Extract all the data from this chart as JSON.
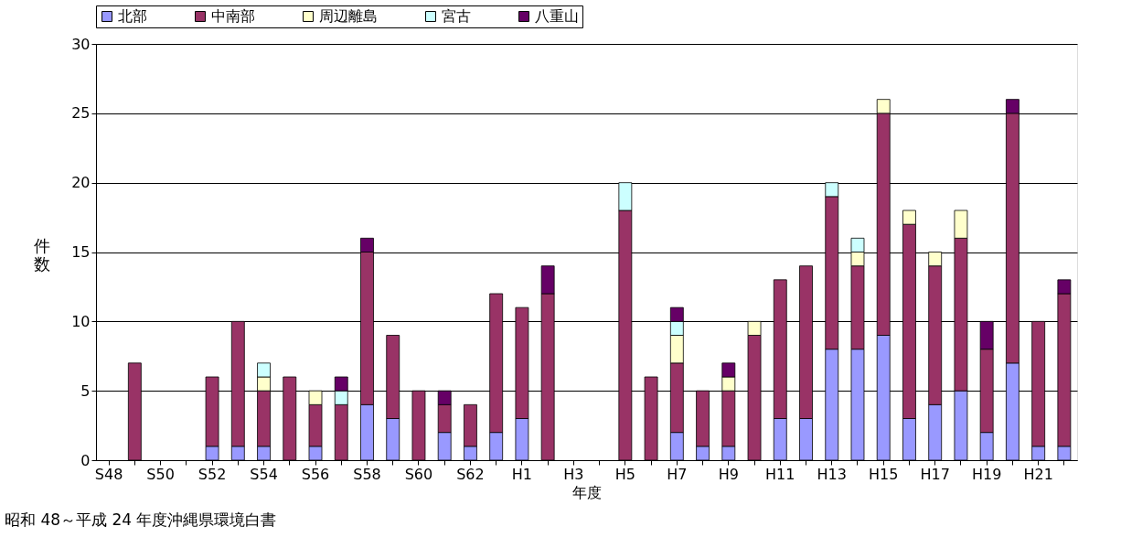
{
  "chart_data": {
    "type": "bar",
    "stacked": true,
    "categories": [
      "S48",
      null,
      "S50",
      null,
      "S52",
      null,
      "S54",
      null,
      "S56",
      null,
      "S58",
      null,
      "S60",
      null,
      "S62",
      null,
      "H1",
      null,
      "H3",
      null,
      "H5",
      null,
      "H7",
      null,
      "H9",
      null,
      "H11",
      null,
      "H13",
      null,
      "H15",
      null,
      "H17",
      null,
      "H19",
      null,
      "H21",
      null
    ],
    "series": [
      {
        "name": "北部",
        "color": "#9999ff",
        "values": [
          null,
          null,
          null,
          null,
          1,
          1,
          1,
          null,
          1,
          null,
          4,
          3,
          null,
          2,
          1,
          2,
          3,
          null,
          null,
          null,
          null,
          null,
          2,
          1,
          1,
          null,
          3,
          3,
          8,
          8,
          9,
          3,
          4,
          5,
          2,
          7,
          1,
          1
        ]
      },
      {
        "name": "中南部",
        "color": "#993366",
        "values": [
          null,
          7,
          null,
          null,
          5,
          9,
          4,
          6,
          3,
          4,
          11,
          6,
          5,
          2,
          3,
          10,
          8,
          12,
          null,
          null,
          18,
          6,
          5,
          4,
          4,
          9,
          10,
          11,
          11,
          6,
          16,
          14,
          10,
          11,
          6,
          18,
          9,
          11
        ]
      },
      {
        "name": "周辺離島",
        "color": "#ffffcc",
        "values": [
          null,
          null,
          null,
          null,
          null,
          null,
          1,
          null,
          1,
          null,
          null,
          null,
          null,
          null,
          null,
          null,
          null,
          null,
          null,
          null,
          null,
          null,
          2,
          null,
          1,
          1,
          null,
          null,
          null,
          1,
          1,
          1,
          1,
          2,
          null,
          null,
          null,
          null
        ]
      },
      {
        "name": "宮古",
        "color": "#ccffff",
        "values": [
          null,
          null,
          null,
          null,
          null,
          null,
          1,
          null,
          null,
          1,
          null,
          null,
          null,
          null,
          null,
          null,
          null,
          null,
          null,
          null,
          2,
          null,
          1,
          null,
          null,
          null,
          null,
          null,
          1,
          1,
          null,
          null,
          null,
          null,
          null,
          null,
          null,
          null
        ]
      },
      {
        "name": "八重山",
        "color": "#660066",
        "values": [
          null,
          null,
          null,
          null,
          null,
          null,
          null,
          null,
          null,
          1,
          1,
          null,
          null,
          1,
          null,
          null,
          null,
          2,
          null,
          null,
          null,
          null,
          1,
          null,
          1,
          null,
          null,
          null,
          null,
          null,
          null,
          null,
          null,
          null,
          2,
          1,
          null,
          1
        ]
      }
    ],
    "ylim": [
      0,
      30
    ],
    "yticks": [
      0,
      5,
      10,
      15,
      20,
      25,
      30
    ],
    "grid": "y",
    "legend": "top",
    "ylabel": "件数",
    "xlabel": "年度",
    "annotations": [
      "昭和 48～平成 24 年度沖縄県環境白書"
    ]
  }
}
